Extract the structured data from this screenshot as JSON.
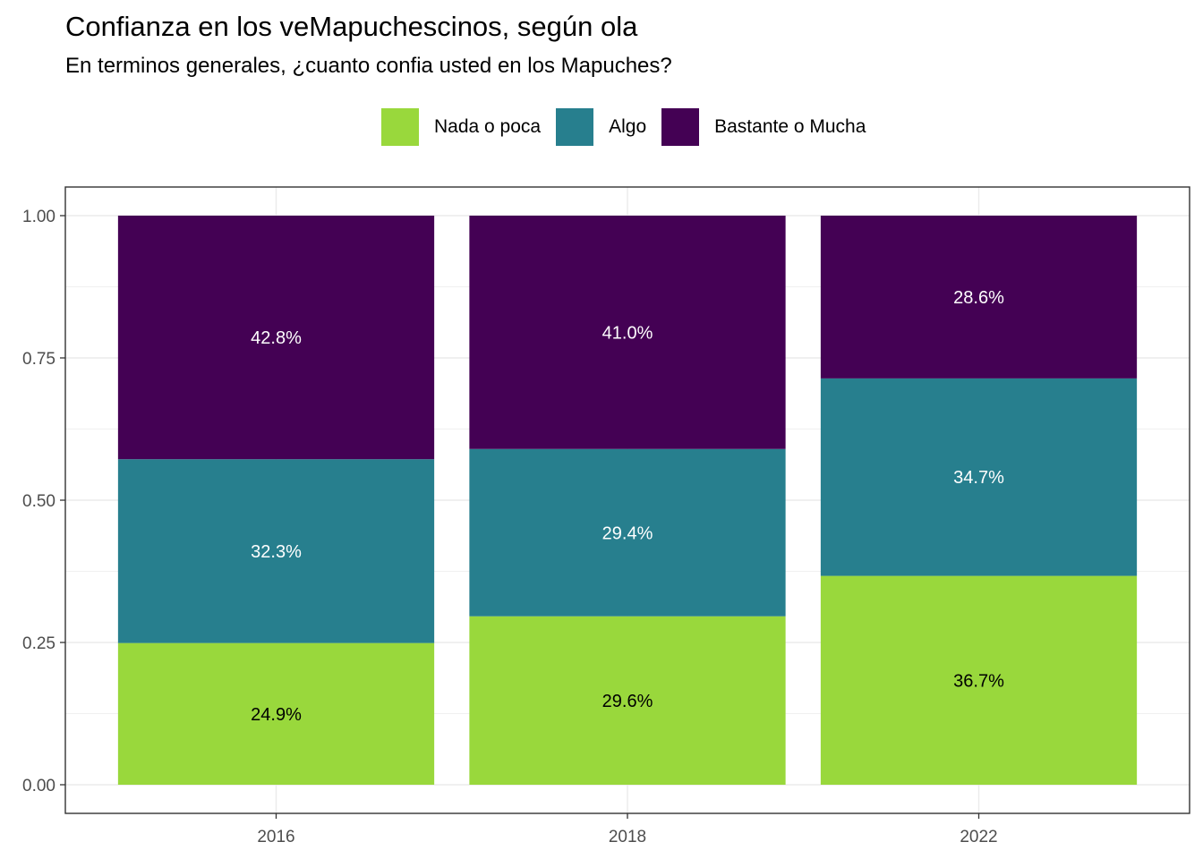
{
  "chart_data": {
    "type": "bar",
    "stacked": true,
    "title": "Confianza en los veMapuchescinos, según ola",
    "subtitle": "En terminos generales, ¿cuanto confia usted en los Mapuches?",
    "xlabel": "",
    "ylabel": "",
    "ylim": [
      0,
      1
    ],
    "y_ticks": [
      "0.00",
      "0.25",
      "0.50",
      "0.75",
      "1.00"
    ],
    "categories": [
      "2016",
      "2018",
      "2022"
    ],
    "series": [
      {
        "name": "Nada o poca",
        "color": "#99d83c",
        "values": [
          0.249,
          0.296,
          0.367
        ],
        "labels": [
          "24.9%",
          "29.6%",
          "36.7%"
        ],
        "label_color": "#000000"
      },
      {
        "name": "Algo",
        "color": "#277f8e",
        "values": [
          0.323,
          0.294,
          0.347
        ],
        "labels": [
          "32.3%",
          "29.4%",
          "34.7%"
        ],
        "label_color": "#ffffff"
      },
      {
        "name": "Bastante o Mucha",
        "color": "#440154",
        "values": [
          0.428,
          0.41,
          0.286
        ],
        "labels": [
          "42.8%",
          "41.0%",
          "28.6%"
        ],
        "label_color": "#ffffff"
      }
    ],
    "legend_position": "top",
    "grid": true
  }
}
